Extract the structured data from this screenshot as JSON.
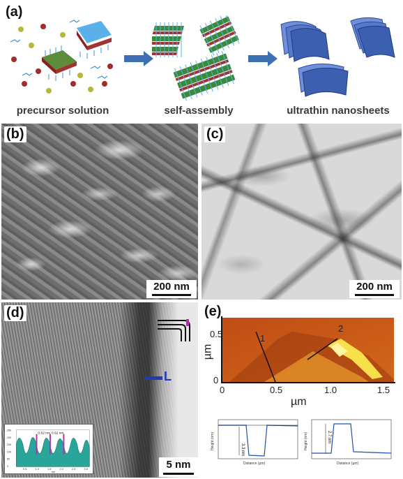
{
  "panel_a": {
    "tag": "(a)",
    "steps": [
      "precursor solution",
      "self-assembly",
      "ultrathin nanosheets"
    ]
  },
  "panel_b": {
    "tag": "(b)",
    "scale": "200 nm"
  },
  "panel_c": {
    "tag": "(c)",
    "scale": "200 nm"
  },
  "panel_d": {
    "tag": "(d)",
    "scale": "5 nm",
    "layer_label": "L",
    "inset": {
      "spacing_labels": [
        "0.62 nm",
        "0.62 nm"
      ],
      "x_ticks": [
        "0.5",
        "1.0",
        "1.5",
        "2.0",
        "2.5",
        "3.0"
      ],
      "y_ticks": [
        "250",
        "200",
        "150",
        "100",
        "50",
        "0"
      ],
      "x_unit": "nm"
    }
  },
  "panel_e": {
    "tag": "(e)",
    "x_label": "µm",
    "y_label": "µm",
    "x_ticks": [
      "0",
      "0.5",
      "1.0",
      "1.5"
    ],
    "y_ticks": [
      "0.5",
      "0"
    ],
    "line_labels": [
      "1",
      "2"
    ],
    "profiles": [
      {
        "height_label": "3.3 nm",
        "x_axis": "Distance (µm)",
        "y_axis": "Height (nm)"
      },
      {
        "height_label": "2.7 nm",
        "x_axis": "Distance (µm)",
        "y_axis": "Height (nm)"
      }
    ]
  },
  "colors": {
    "arrow": "#3d6fb5",
    "nanosheet": "#3c5fb0",
    "inset_fill": "#2aa59a",
    "marker": "#b62fb2",
    "afm_dark": "#c2571a",
    "afm_light": "#f7e04a"
  }
}
